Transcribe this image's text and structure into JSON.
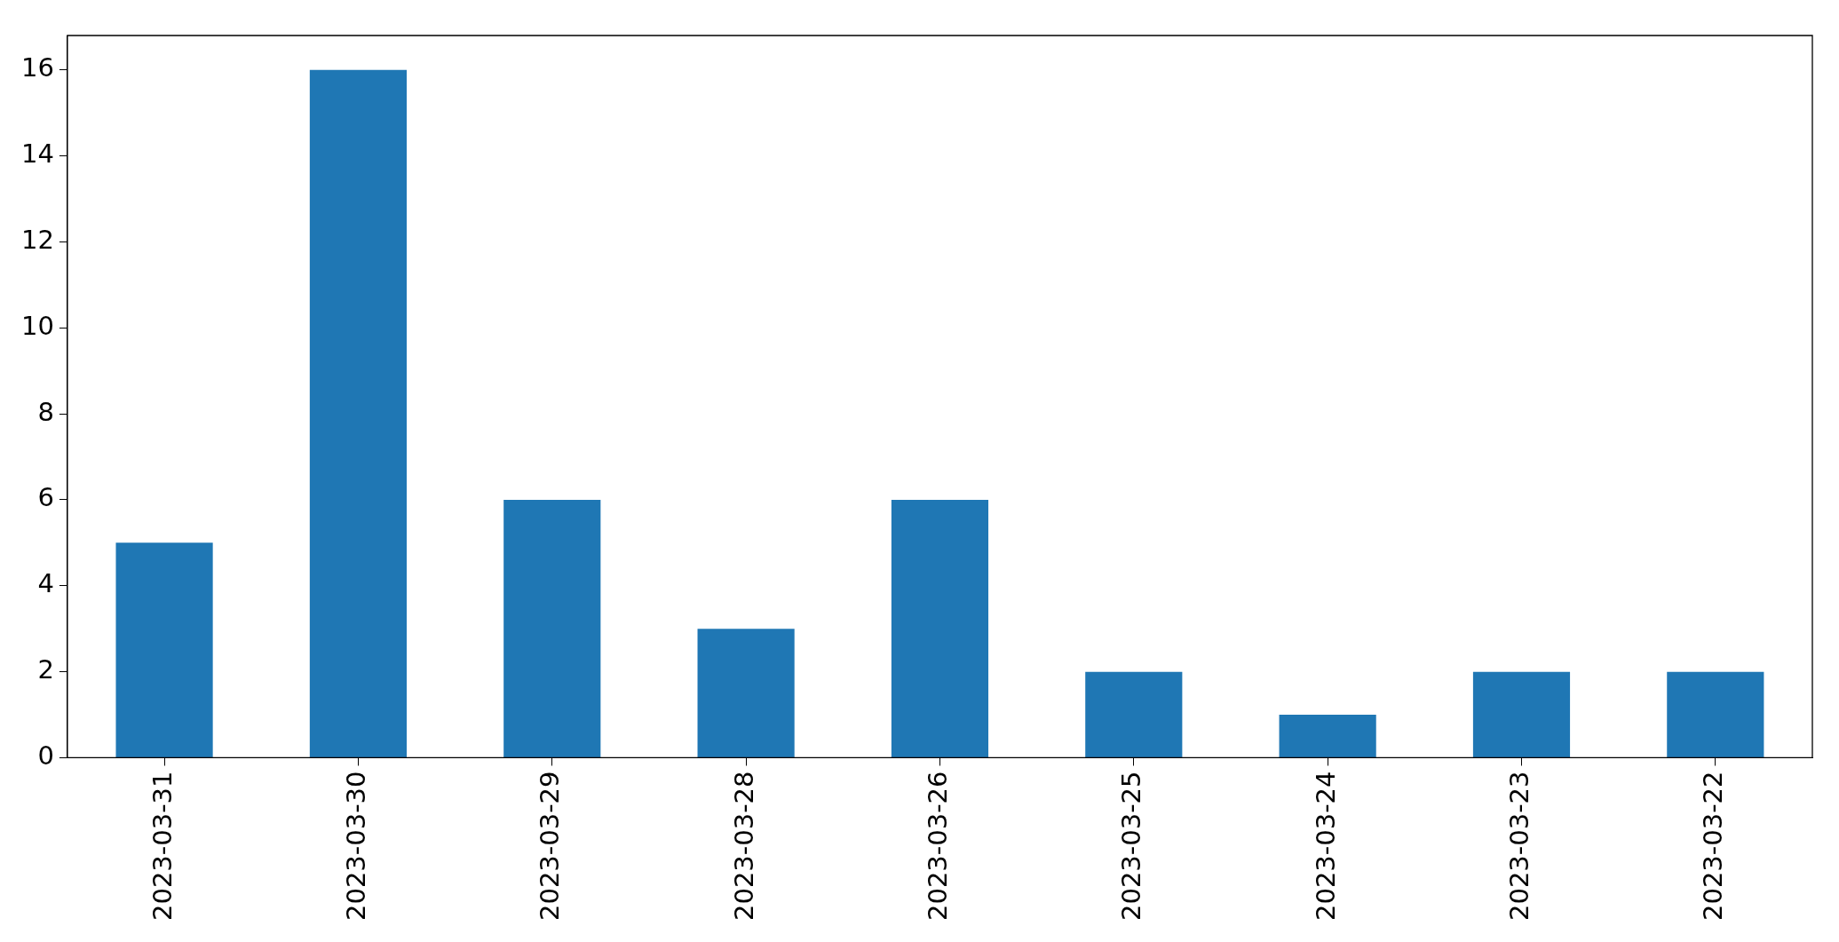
{
  "chart_data": {
    "type": "bar",
    "categories": [
      "2023-03-31",
      "2023-03-30",
      "2023-03-29",
      "2023-03-28",
      "2023-03-26",
      "2023-03-25",
      "2023-03-24",
      "2023-03-23",
      "2023-03-22"
    ],
    "values": [
      5,
      16,
      6,
      3,
      6,
      2,
      1,
      2,
      2
    ],
    "color": "#1f77b4",
    "ylim": [
      0,
      16.8
    ],
    "yticks": [
      0,
      2,
      4,
      6,
      8,
      10,
      12,
      14,
      16
    ]
  }
}
